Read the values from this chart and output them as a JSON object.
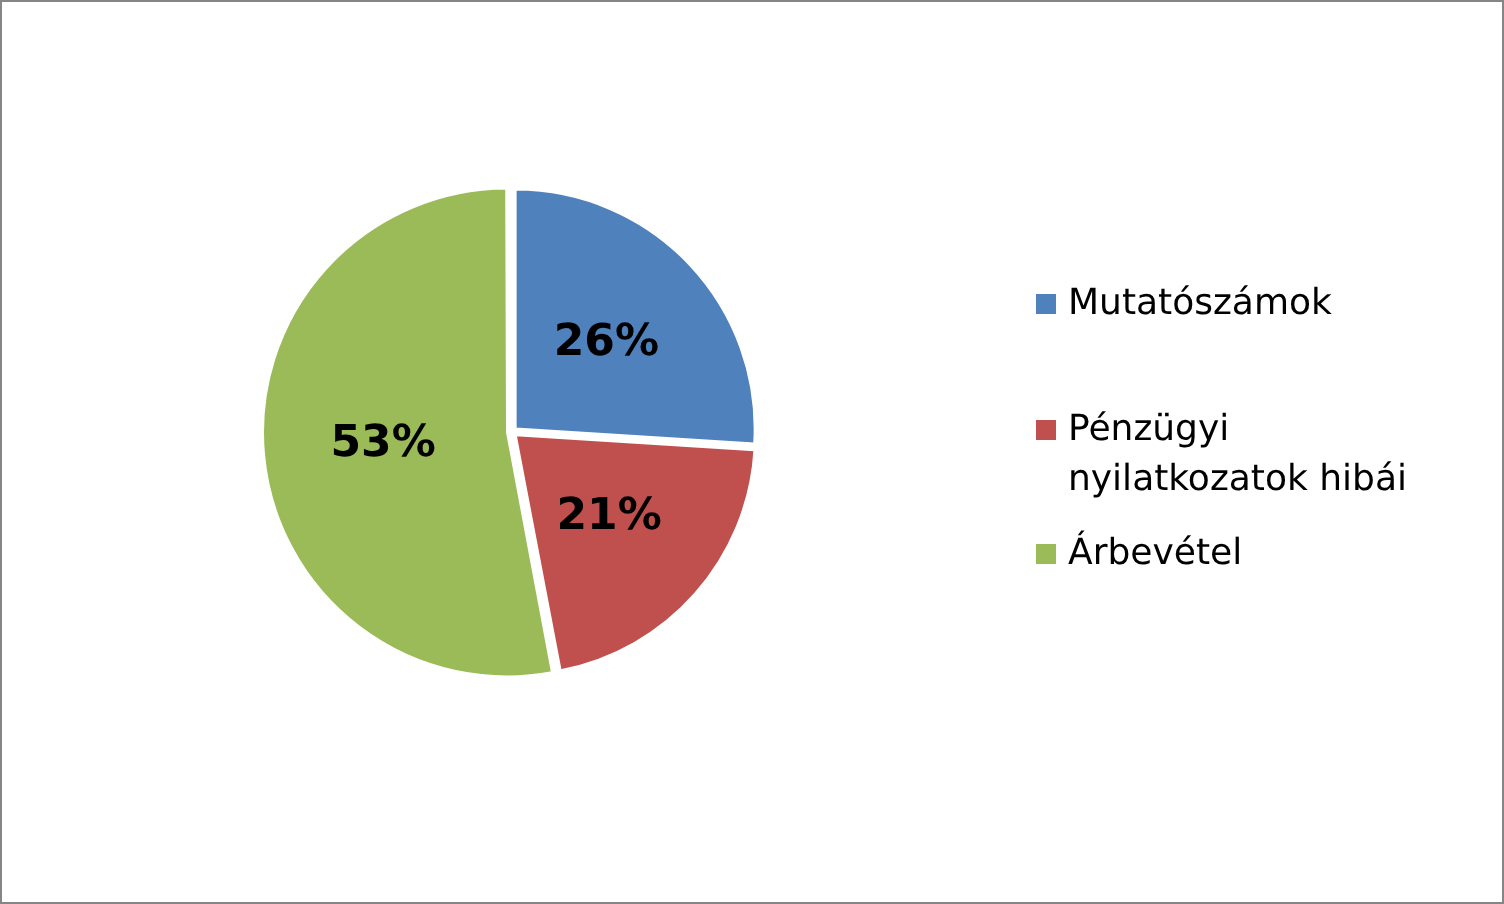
{
  "chart_data": {
    "type": "pie",
    "categories": [
      "Mutatószámok",
      "Pénzügyi nyilatkozatok hibái",
      "Árbevétel"
    ],
    "values": [
      26,
      21,
      53
    ],
    "value_labels": [
      "26%",
      "21%",
      "53%"
    ],
    "colors": [
      "#4f81bd",
      "#c0504d",
      "#9bbb59"
    ],
    "legend": "right"
  }
}
